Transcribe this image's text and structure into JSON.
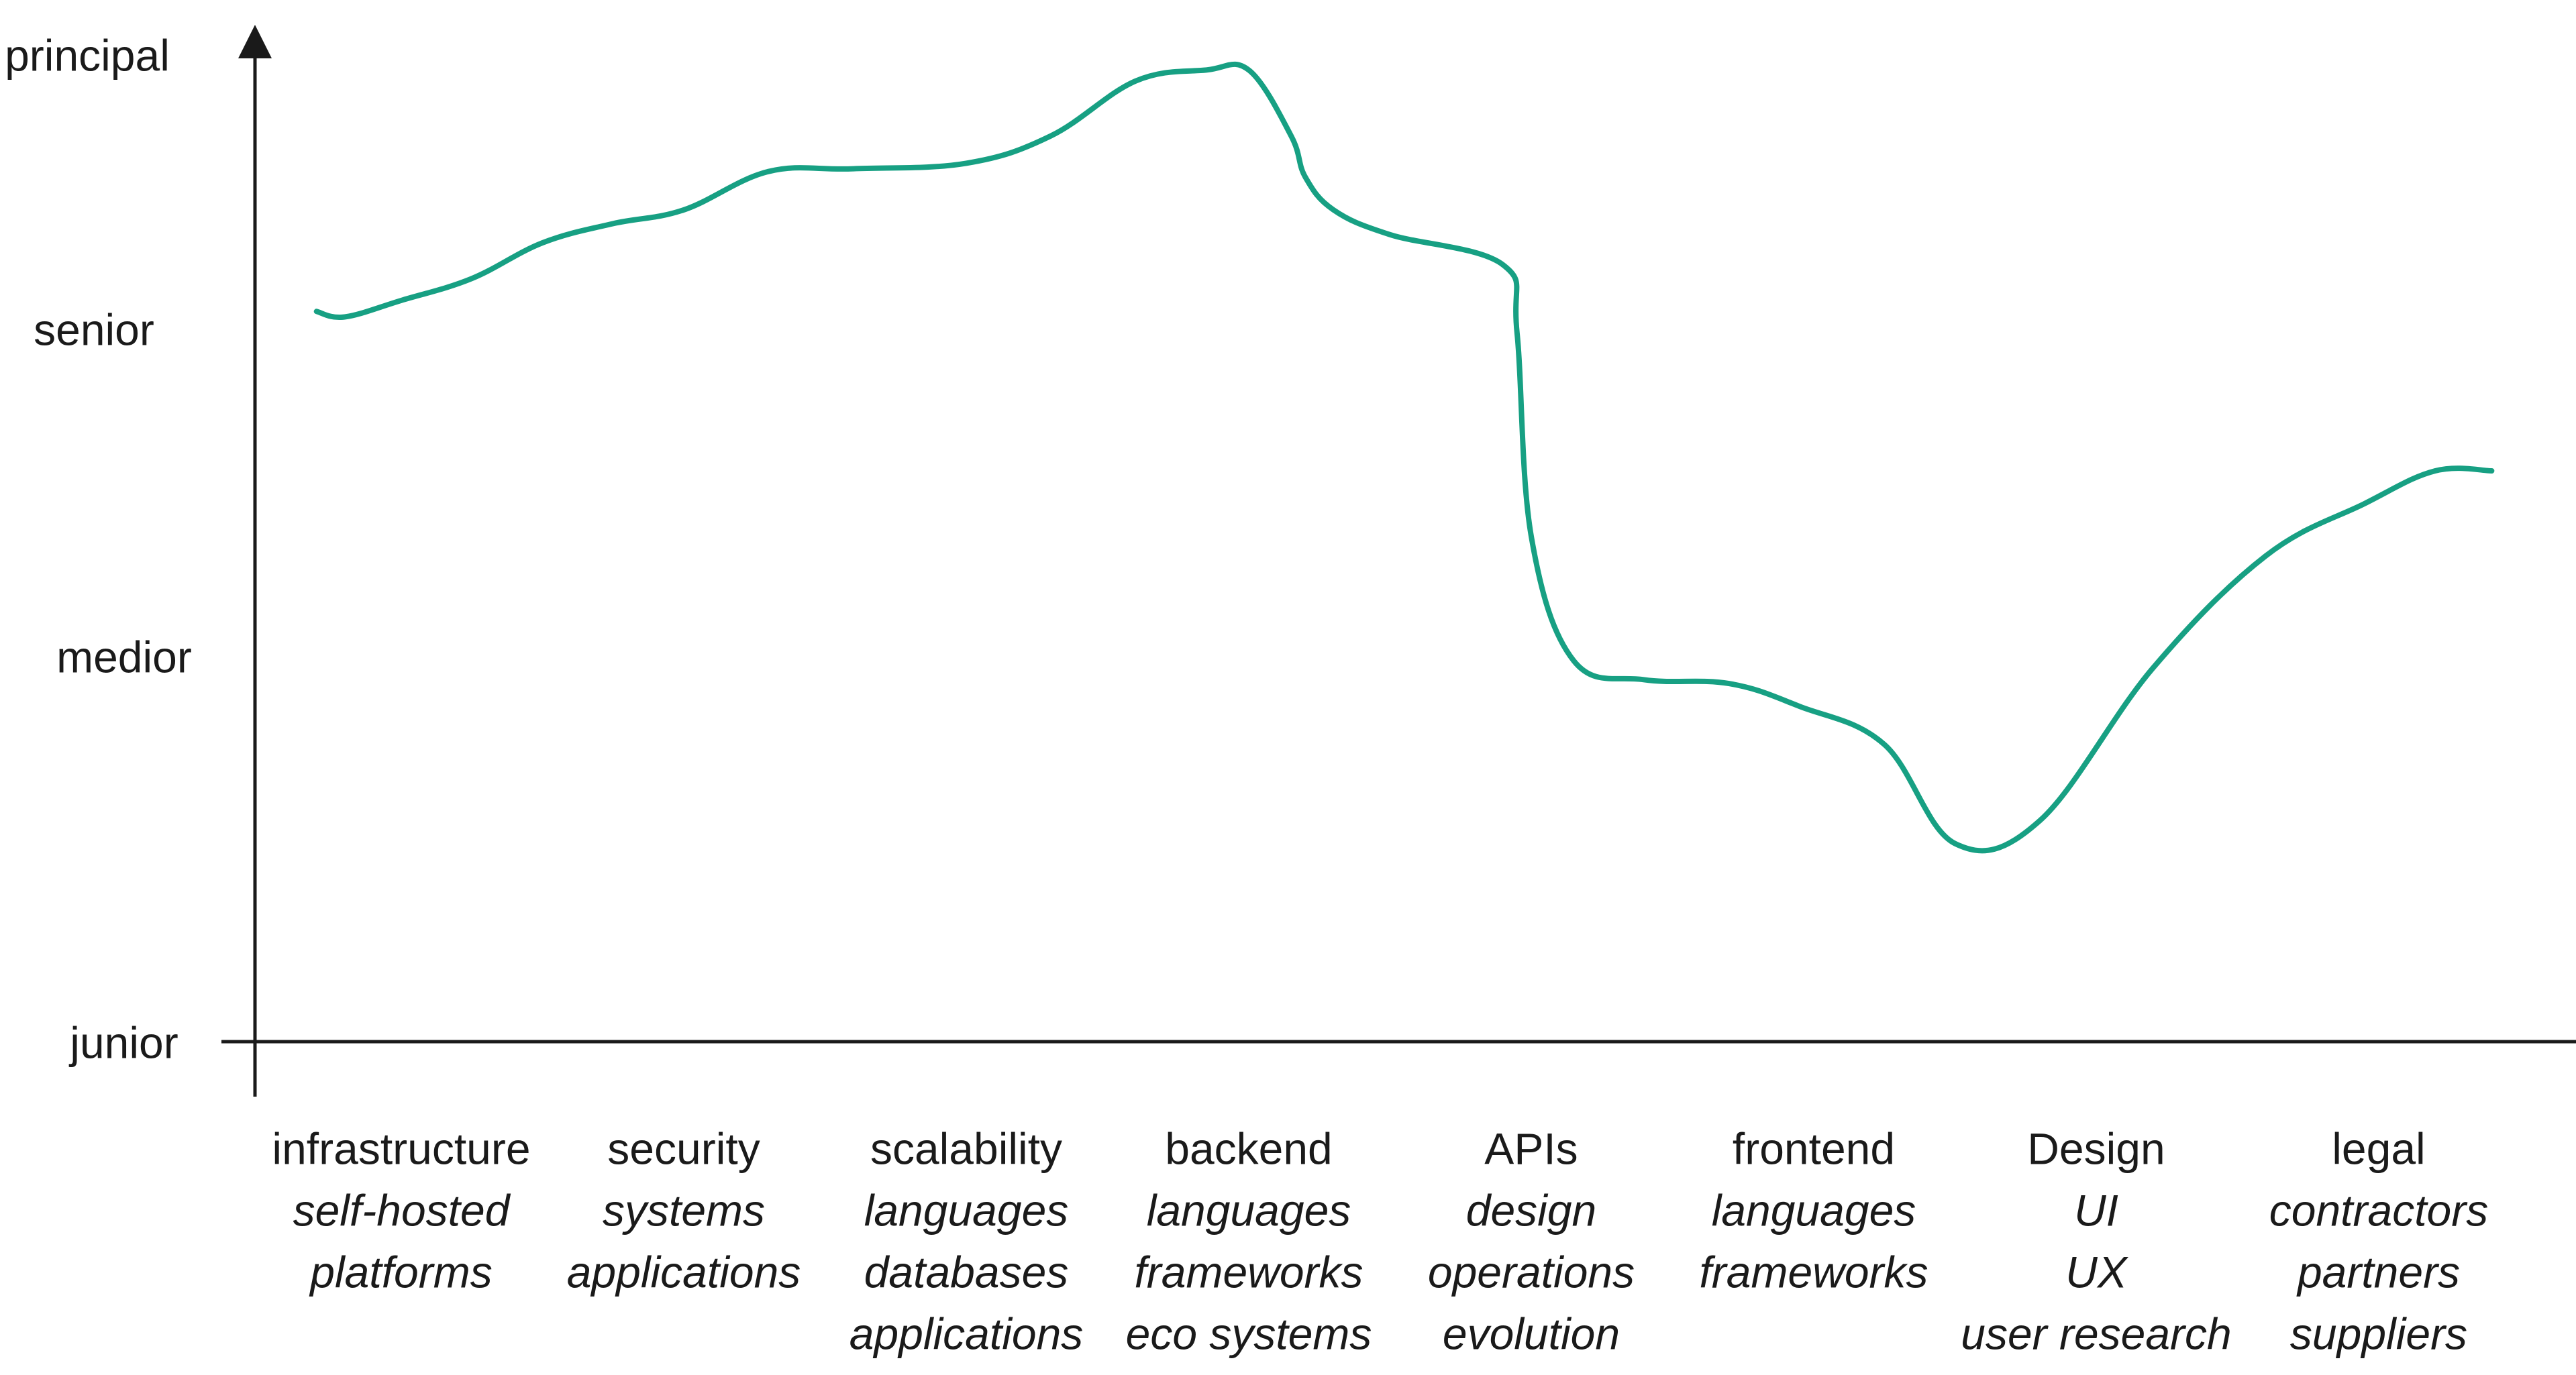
{
  "chart_data": {
    "type": "line",
    "title": "",
    "xlabel": "",
    "ylabel": "",
    "y_levels": [
      "junior",
      "medior",
      "senior",
      "principal"
    ],
    "categories": [
      {
        "label": "infrastructure",
        "subs": [
          "self-hosted",
          "platforms"
        ]
      },
      {
        "label": "security",
        "subs": [
          "systems",
          "applications"
        ]
      },
      {
        "label": "scalability",
        "subs": [
          "languages",
          "databases",
          "applications"
        ]
      },
      {
        "label": "backend",
        "subs": [
          "languages",
          "frameworks",
          "eco systems"
        ]
      },
      {
        "label": "APIs",
        "subs": [
          "design",
          "operations",
          "evolution"
        ]
      },
      {
        "label": "frontend",
        "subs": [
          "languages",
          "frameworks"
        ]
      },
      {
        "label": "Design",
        "subs": [
          "UI",
          "UX",
          "user research"
        ]
      },
      {
        "label": "legal",
        "subs": [
          "contractors",
          "partners",
          "suppliers"
        ]
      }
    ],
    "ylim": [
      0,
      3
    ],
    "xlim": [
      -0.3,
      7.4
    ],
    "series": [
      {
        "color": "#17a083",
        "x": [
          -0.3,
          -0.2,
          0.0,
          0.25,
          0.5,
          0.75,
          1.0,
          1.3,
          1.6,
          2.0,
          2.3,
          2.6,
          2.85,
          3.0,
          3.15,
          3.2,
          3.3,
          3.5,
          3.9,
          3.95,
          4.0,
          4.15,
          4.4,
          4.7,
          4.95,
          5.25,
          5.5,
          5.8,
          6.2,
          6.6,
          6.95,
          7.2,
          7.4
        ],
        "y": [
          2.08,
          2.06,
          2.12,
          2.2,
          2.33,
          2.4,
          2.45,
          2.59,
          2.6,
          2.62,
          2.72,
          2.92,
          2.96,
          2.96,
          2.72,
          2.57,
          2.45,
          2.36,
          2.25,
          2.0,
          1.38,
          1.0,
          0.95,
          0.94,
          0.88,
          0.78,
          0.52,
          0.58,
          0.98,
          1.32,
          1.48,
          1.58,
          1.58
        ]
      }
    ],
    "grid": false,
    "legend": "none"
  }
}
